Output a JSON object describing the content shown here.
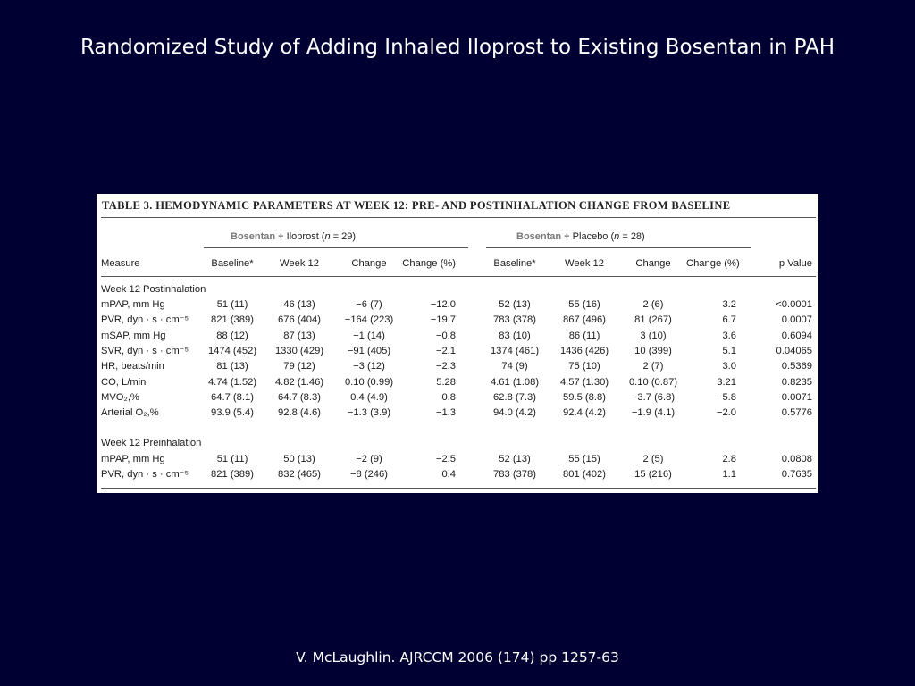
{
  "slide": {
    "title": "Randomized Study of Adding Inhaled Iloprost to Existing Bosentan in PAH",
    "citation": "V. McLaughlin. AJRCCM 2006 (174) pp 1257-63"
  },
  "table": {
    "caption": "TABLE 3. HEMODYNAMIC PARAMETERS AT WEEK 12: PRE- AND POSTINHALATION CHANGE FROM BASELINE",
    "groups": [
      {
        "treatment": "Bosentan +",
        "comparator": "Iloprost (",
        "n_label": "n",
        "n_value": " = 29)"
      },
      {
        "treatment": "Bosentan +",
        "comparator": "Placebo (",
        "n_label": "n",
        "n_value": " = 28)"
      }
    ],
    "headers": [
      "Measure",
      "Baseline*",
      "Week 12",
      "Change",
      "Change (%)",
      "Baseline*",
      "Week 12",
      "Change",
      "Change (%)",
      "p Value"
    ],
    "sections": [
      {
        "title": "Week 12 Postinhalation",
        "rows": [
          [
            "mPAP, mm Hg",
            "51 (11)",
            "46 (13)",
            "−6 (7)",
            "−12.0",
            "52 (13)",
            "55 (16)",
            "2 (6)",
            "3.2",
            "<0.0001"
          ],
          [
            "PVR, dyn · s · cm⁻⁵",
            "821 (389)",
            "676 (404)",
            "−164 (223)",
            "−19.7",
            "783 (378)",
            "867 (496)",
            "81 (267)",
            "6.7",
            "0.0007"
          ],
          [
            "mSAP, mm Hg",
            "88 (12)",
            "87 (13)",
            "−1 (14)",
            "−0.8",
            "83 (10)",
            "86 (11)",
            "3 (10)",
            "3.6",
            "0.6094"
          ],
          [
            "SVR, dyn · s · cm⁻⁵",
            "1474 (452)",
            "1330 (429)",
            "−91 (405)",
            "−2.1",
            "1374 (461)",
            "1436 (426)",
            "10 (399)",
            "5.1",
            "0.04065"
          ],
          [
            "HR, beats/min",
            "81 (13)",
            "79 (12)",
            "−3 (12)",
            "−2.3",
            "74 (9)",
            "75 (10)",
            "2 (7)",
            "3.0",
            "0.5369"
          ],
          [
            "CO, L/min",
            "4.74 (1.52)",
            "4.82 (1.46)",
            "0.10 (0.99)",
            "5.28",
            "4.61 (1.08)",
            "4.57 (1.30)",
            "0.10 (0.87)",
            "3.21",
            "0.8235"
          ],
          [
            "MVO₂,%",
            "64.7 (8.1)",
            "64.7 (8.3)",
            "0.4 (4.9)",
            "0.8",
            "62.8 (7.3)",
            "59.5 (8.8)",
            "−3.7 (6.8)",
            "−5.8",
            "0.0071"
          ],
          [
            "Arterial O₂,%",
            "93.9 (5.4)",
            "92.8 (4.6)",
            "−1.3 (3.9)",
            "−1.3",
            "94.0 (4.2)",
            "92.4 (4.2)",
            "−1.9 (4.1)",
            "−2.0",
            "0.5776"
          ]
        ]
      },
      {
        "title": "Week 12 Preinhalation",
        "rows": [
          [
            "mPAP, mm Hg",
            "51 (11)",
            "50 (13)",
            "−2 (9)",
            "−2.5",
            "52 (13)",
            "55 (15)",
            "2 (5)",
            "2.8",
            "0.0808"
          ],
          [
            "PVR, dyn · s · cm⁻⁵",
            "821 (389)",
            "832 (465)",
            "−8 (246)",
            "0.4",
            "783 (378)",
            "801 (402)",
            "15 (216)",
            "1.1",
            "0.7635"
          ]
        ]
      }
    ]
  }
}
